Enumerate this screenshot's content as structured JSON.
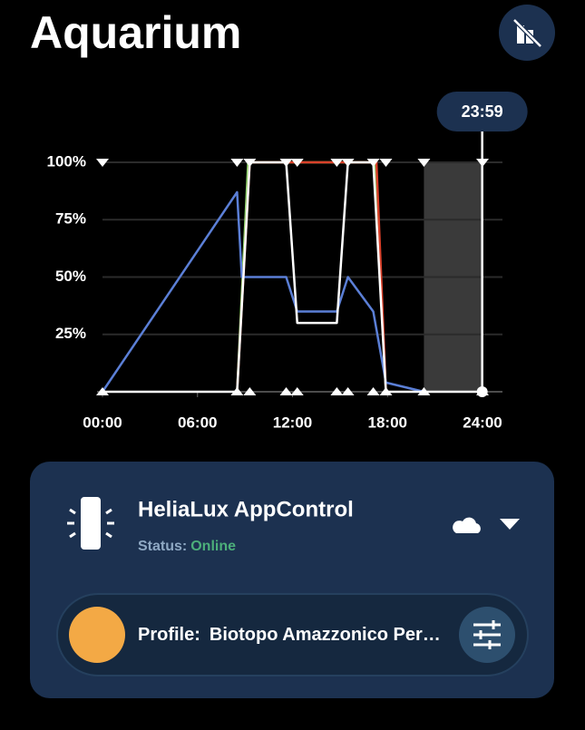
{
  "header": {
    "title": "Aquarium"
  },
  "chart_data": {
    "type": "line",
    "xlim": [
      0,
      24
    ],
    "xticks": [
      {
        "value": 0,
        "label": "00:00"
      },
      {
        "value": 6,
        "label": "06:00"
      },
      {
        "value": 12,
        "label": "12:00"
      },
      {
        "value": 18,
        "label": "18:00"
      },
      {
        "value": 24,
        "label": "24:00"
      }
    ],
    "ylim": [
      0,
      100
    ],
    "yticks": [
      {
        "value": 25,
        "label": "25%"
      },
      {
        "value": 50,
        "label": "50%"
      },
      {
        "value": 75,
        "label": "75%"
      },
      {
        "value": 100,
        "label": "100%"
      }
    ],
    "grid": true,
    "highlight_range": [
      20.3,
      24
    ],
    "cursor": {
      "x": 23.98,
      "label": "23:59"
    },
    "series": [
      {
        "color": "#8bd36a",
        "x": [
          8.5,
          9.2,
          17.2,
          17.9
        ],
        "values": [
          0,
          100,
          100,
          0
        ]
      },
      {
        "color": "#d9412b",
        "x": [
          8.5,
          9.3,
          17.3,
          17.9
        ],
        "values": [
          0,
          100,
          100,
          0
        ]
      },
      {
        "color": "#5b7fd6",
        "x": [
          0,
          8.5,
          8.8,
          11.6,
          12.3,
          14.8,
          15.5,
          17.1,
          17.9,
          20.3
        ],
        "values": [
          0,
          87,
          50,
          50,
          35,
          35,
          50,
          35,
          4,
          0
        ]
      },
      {
        "color": "#ffffff",
        "markers": true,
        "x": [
          0,
          8.5,
          9.3,
          11.6,
          12.3,
          14.8,
          15.5,
          17.1,
          17.9,
          20.3,
          24
        ],
        "values": [
          0,
          0,
          100,
          100,
          30,
          30,
          100,
          100,
          0,
          0,
          0
        ]
      }
    ]
  },
  "device": {
    "name": "HeliaLux AppControl",
    "status_label": "Status:",
    "status": "Online"
  },
  "profile": {
    "label": "Profile:",
    "name": "Biotopo Amazzonico Per…"
  }
}
